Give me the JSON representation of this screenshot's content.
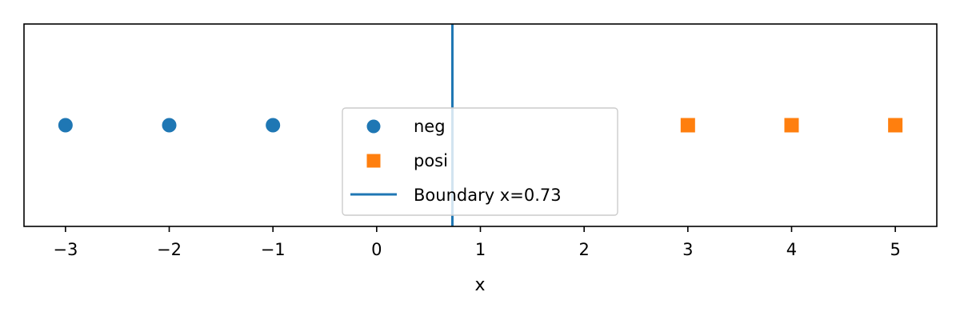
{
  "chart_data": {
    "type": "scatter",
    "xlabel": "x",
    "ylabel": "",
    "xlim": [
      -3.4,
      5.4
    ],
    "ylim": [
      -1,
      1
    ],
    "xticks": [
      -3,
      -2,
      -1,
      0,
      1,
      2,
      3,
      4,
      5
    ],
    "xtick_labels": [
      "−3",
      "−2",
      "−1",
      "0",
      "1",
      "2",
      "3",
      "4",
      "5"
    ],
    "yticks_visible": false,
    "grid": false,
    "legend_position": "center",
    "series": [
      {
        "name": "neg",
        "marker": "circle",
        "color": "#1f77b4",
        "points": [
          {
            "x": -3,
            "y": 0
          },
          {
            "x": -2,
            "y": 0
          },
          {
            "x": -1,
            "y": 0
          }
        ]
      },
      {
        "name": "posi",
        "marker": "square",
        "color": "#ff7f0e",
        "points": [
          {
            "x": 3,
            "y": 0
          },
          {
            "x": 4,
            "y": 0
          },
          {
            "x": 5,
            "y": 0
          }
        ]
      }
    ],
    "vlines": [
      {
        "name": "Boundary x=0.73",
        "x": 0.73,
        "color": "#1f77b4"
      }
    ]
  }
}
